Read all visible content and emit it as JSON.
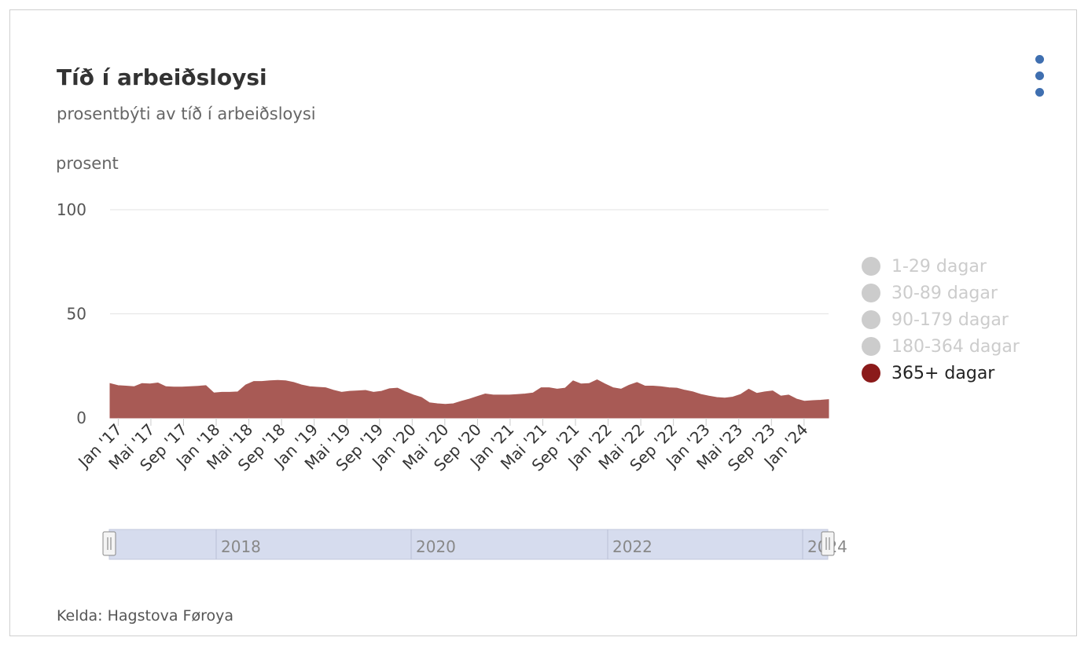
{
  "header": {
    "title": "Tíð í arbeiðsloysi",
    "subtitle": "prosentbýti av tíð í arbeiðsloysi",
    "unit_label": "prosent",
    "menu_icon": "more-vertical-icon"
  },
  "legend": {
    "items": [
      {
        "label": "1-29 dagar",
        "active": false
      },
      {
        "label": "30-89 dagar",
        "active": false
      },
      {
        "label": "90-179 dagar",
        "active": false
      },
      {
        "label": "180-364 dagar",
        "active": false
      },
      {
        "label": "365+ dagar",
        "active": true
      }
    ]
  },
  "navigator": {
    "labels": [
      "2018",
      "2020",
      "2022",
      "2024"
    ]
  },
  "footer": {
    "source": "Kelda: Hagstova Føroya"
  },
  "colors": {
    "series": "#a85a55",
    "legend_active": "#8b1a1a",
    "legend_inactive": "#cccccc",
    "navigator_fill": "#d6dcee",
    "menu": "#3f6fb0"
  },
  "chart_data": {
    "type": "area",
    "title": "Tíð í arbeiðsloysi",
    "subtitle": "prosentbýti av tíð í arbeiðsloysi",
    "ylabel": "prosent",
    "ylim": [
      0,
      100
    ],
    "yticks": [
      0,
      50,
      100
    ],
    "grid": true,
    "legend_position": "right",
    "x_tick_labels": [
      "Jan '17",
      "Mai '17",
      "Sep '17",
      "Jan '18",
      "Mai '18",
      "Sep '18",
      "Jan '19",
      "Mai '19",
      "Sep '19",
      "Jan '20",
      "Mai '20",
      "Sep '20",
      "Jan '21",
      "Mai '21",
      "Sep '21",
      "Jan '22",
      "Mai '22",
      "Sep '22",
      "Jan '23",
      "Mai '23",
      "Sep '23",
      "Jan '24"
    ],
    "x_start": "2016-12",
    "x_end": "2024-04",
    "series": [
      {
        "name": "365+ dagar",
        "color": "#a85a55",
        "values": [
          16.5,
          15.5,
          15.3,
          15.0,
          16.5,
          16.3,
          16.8,
          15.0,
          14.8,
          14.8,
          15.0,
          15.2,
          15.5,
          12.0,
          12.3,
          12.3,
          12.5,
          15.8,
          17.5,
          17.5,
          17.8,
          18.0,
          17.8,
          17.0,
          15.8,
          15.0,
          14.7,
          14.5,
          13.3,
          12.3,
          12.8,
          13.0,
          13.2,
          12.3,
          12.8,
          14.0,
          14.3,
          12.5,
          11.0,
          9.8,
          7.3,
          6.8,
          6.5,
          6.8,
          8.0,
          9.0,
          10.3,
          11.5,
          11.0,
          11.0,
          11.0,
          11.2,
          11.5,
          12.0,
          14.5,
          14.5,
          13.8,
          14.3,
          17.8,
          16.3,
          16.5,
          18.3,
          16.3,
          14.5,
          13.8,
          15.7,
          17.0,
          15.3,
          15.3,
          15.0,
          14.5,
          14.3,
          13.3,
          12.5,
          11.3,
          10.5,
          9.8,
          9.5,
          10.0,
          11.3,
          13.8,
          11.8,
          12.5,
          13.0,
          10.5,
          11.0,
          9.0,
          8.0,
          8.3,
          8.5,
          8.8
        ]
      }
    ]
  }
}
